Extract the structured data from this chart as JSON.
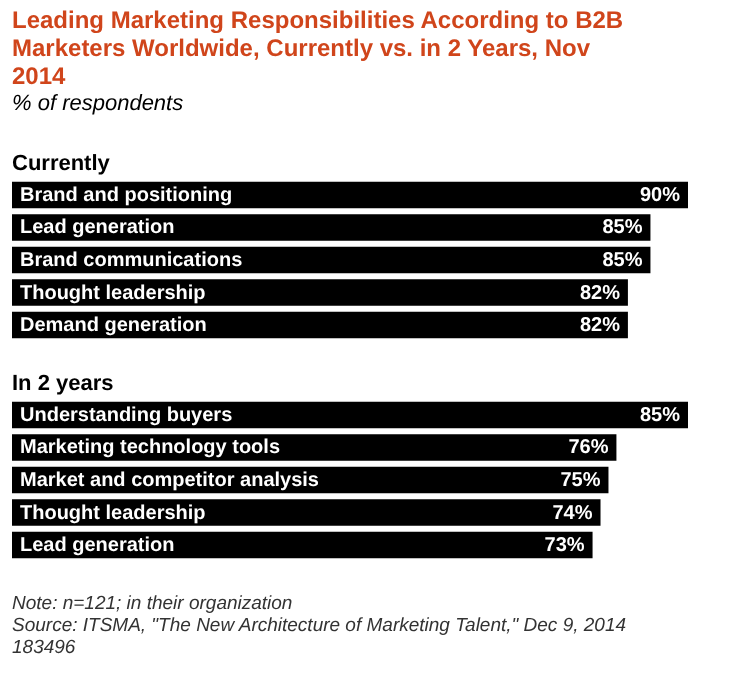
{
  "chart_data": [
    {
      "type": "bar",
      "orientation": "horizontal",
      "title": "Leading Marketing Responsibilities According to B2B Marketers Worldwide, Currently vs. in 2 Years, Nov 2014",
      "subtitle": "% of respondents",
      "annotations": [
        "Currently"
      ],
      "categories": [
        "Brand and positioning",
        "Lead generation",
        "Brand communications",
        "Thought leadership",
        "Demand generation"
      ],
      "values": [
        90,
        85,
        85,
        82,
        82
      ],
      "value_labels": [
        "90%",
        "85%",
        "85%",
        "82%",
        "82%"
      ],
      "color": "#000000"
    },
    {
      "type": "bar",
      "orientation": "horizontal",
      "annotations": [
        "In 2 years",
        "Note: n=121; in their organization",
        "Source: ITSMA, \"The New Architecture of Marketing Talent,\" Dec 9, 2014",
        "183496"
      ],
      "categories": [
        "Understanding buyers",
        "Marketing technology tools",
        "Market and competitor analysis",
        "Thought leadership",
        "Lead generation"
      ],
      "values": [
        85,
        76,
        75,
        74,
        73
      ],
      "value_labels": [
        "85%",
        "76%",
        "75%",
        "74%",
        "73%"
      ],
      "color": "#000000"
    }
  ]
}
